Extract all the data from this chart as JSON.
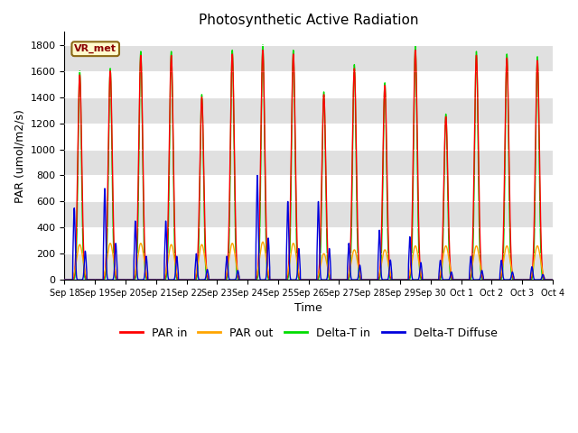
{
  "title": "Photosynthetic Active Radiation",
  "ylabel": "PAR (umol/m2/s)",
  "xlabel": "Time",
  "ylim": [
    0,
    1900
  ],
  "yticks": [
    0,
    200,
    400,
    600,
    800,
    1000,
    1200,
    1400,
    1600,
    1800
  ],
  "colors": {
    "PAR_in": "#ff0000",
    "PAR_out": "#ffa500",
    "Delta_T_in": "#00dd00",
    "Delta_T_Diffuse": "#0000dd"
  },
  "legend_labels": [
    "PAR in",
    "PAR out",
    "Delta-T in",
    "Delta-T Diffuse"
  ],
  "vr_met_label": "VR_met",
  "bg_gray": "#e0e0e0",
  "bg_white": "#ffffff",
  "linewidth": 1.0,
  "num_days": 16,
  "figsize": [
    6.4,
    4.8
  ],
  "dpi": 100
}
